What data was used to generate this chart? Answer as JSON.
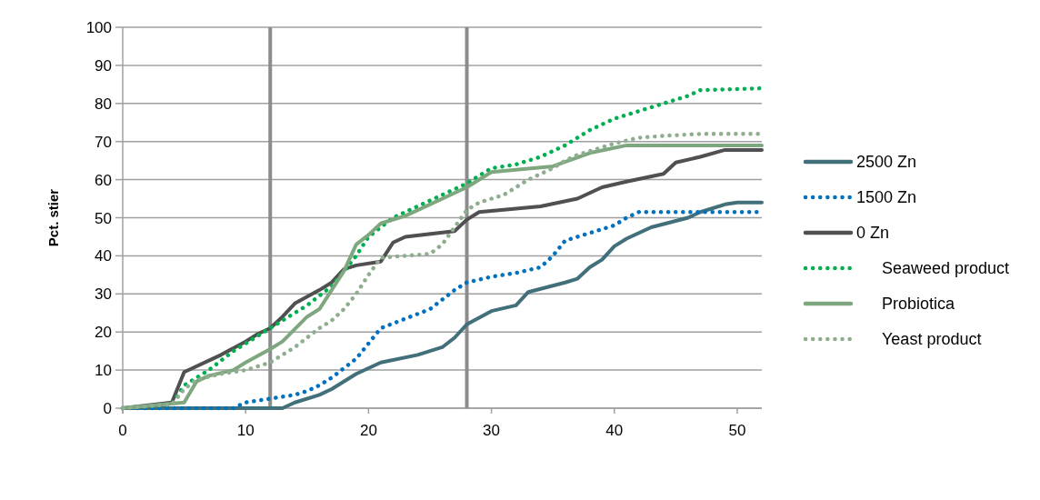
{
  "chart_data": {
    "type": "line",
    "ylabel": "Pct. stier",
    "xlim": [
      0,
      52
    ],
    "xticks": [
      0,
      10,
      20,
      30,
      40,
      50
    ],
    "ylim": [
      0,
      100
    ],
    "yticks": [
      0,
      10,
      20,
      30,
      40,
      50,
      60,
      70,
      80,
      90,
      100
    ],
    "grid": "y",
    "legend": "right",
    "ref_lines": [
      {
        "axis": "x",
        "value": 12,
        "color": "#8c8c8c"
      },
      {
        "axis": "x",
        "value": 28,
        "color": "#8c8c8c"
      }
    ],
    "series": [
      {
        "name": "2500 Zn",
        "color": "#41707a",
        "line_style": "solid",
        "x": [
          0,
          13,
          14,
          16,
          17,
          19,
          20,
          21,
          24,
          26,
          27,
          28,
          30,
          32,
          33,
          36,
          37,
          38,
          39,
          40,
          41,
          43,
          46,
          47,
          49,
          50,
          52
        ],
        "values": [
          0,
          0,
          1.5,
          3.5,
          5,
          9,
          10.5,
          12,
          14,
          16,
          18.5,
          22,
          25.5,
          27,
          30.5,
          33,
          34,
          37,
          39,
          42.5,
          44.5,
          47.5,
          50,
          51.5,
          53.5,
          54,
          54
        ]
      },
      {
        "name": "1500 Zn",
        "color": "#0070c0",
        "line_style": "dotted",
        "x": [
          0,
          9,
          10,
          12,
          14,
          15,
          16,
          17,
          18,
          19,
          20,
          21,
          23,
          25,
          26,
          27,
          28,
          30,
          32,
          34,
          35,
          36,
          38,
          40,
          41,
          42,
          52
        ],
        "values": [
          0,
          0,
          1.5,
          2.5,
          3.5,
          4.5,
          6,
          8,
          10.5,
          13,
          17,
          21,
          23.5,
          26,
          28.5,
          31,
          33,
          34.5,
          35.5,
          37,
          40,
          44,
          46,
          48,
          50,
          51.5,
          51.5
        ]
      },
      {
        "name": "0 Zn",
        "color": "#505050",
        "line_style": "solid",
        "x": [
          0,
          4,
          5,
          8,
          10,
          11,
          12,
          13,
          14,
          16,
          17,
          18,
          19,
          21,
          22,
          23,
          27,
          28,
          29,
          34,
          37,
          39,
          41,
          44,
          45,
          47,
          49,
          52
        ],
        "values": [
          0,
          1.5,
          9.5,
          14,
          17.5,
          19.5,
          21,
          24,
          27.5,
          31,
          33,
          36.5,
          37.5,
          38.5,
          43.5,
          45,
          46.5,
          49.5,
          51.5,
          53,
          55,
          58,
          59.5,
          61.5,
          64.5,
          66,
          67.8,
          67.8
        ]
      },
      {
        "name": "Seaweed product",
        "color": "#00b050",
        "line_style": "dotted",
        "x": [
          0,
          4,
          5,
          7,
          9,
          11,
          13,
          15,
          17,
          19,
          20,
          22,
          24,
          26,
          28,
          29,
          30,
          32,
          34,
          36,
          38,
          40,
          42,
          44,
          46,
          47,
          52
        ],
        "values": [
          0,
          1,
          6,
          10,
          15,
          19,
          23,
          27,
          32,
          40,
          45,
          50,
          53,
          56,
          59,
          61,
          63,
          64,
          66,
          69,
          73,
          76,
          78,
          80,
          82,
          83.5,
          84
        ]
      },
      {
        "name": "Probiotica",
        "color": "#7fa77f",
        "line_style": "solid",
        "x": [
          0,
          5,
          6,
          7,
          9,
          10,
          12,
          13,
          15,
          16,
          18,
          19,
          20,
          21,
          23,
          24,
          28,
          30,
          35,
          38,
          41,
          52
        ],
        "values": [
          0,
          1.5,
          7,
          8.5,
          10,
          12,
          15.5,
          17.5,
          24,
          26,
          36,
          43,
          45.5,
          48.5,
          50.5,
          52,
          58,
          62,
          63.5,
          67,
          69,
          69
        ]
      },
      {
        "name": "Yeast product",
        "color": "#8fae8f",
        "line_style": "dotted",
        "x": [
          0,
          4,
          5,
          6,
          8,
          10,
          12,
          14,
          16,
          17,
          18,
          19,
          20,
          21,
          23,
          25,
          26,
          27,
          28,
          29,
          31,
          33,
          35,
          36,
          37,
          40,
          42,
          44,
          47,
          52
        ],
        "values": [
          0,
          1,
          5,
          7.5,
          9,
          10,
          12,
          16,
          21,
          23,
          26,
          30,
          35,
          39.5,
          40,
          40.5,
          43,
          47.5,
          52,
          54,
          56,
          60,
          63,
          65,
          66.5,
          69.5,
          71,
          71.5,
          72,
          72
        ]
      }
    ]
  }
}
